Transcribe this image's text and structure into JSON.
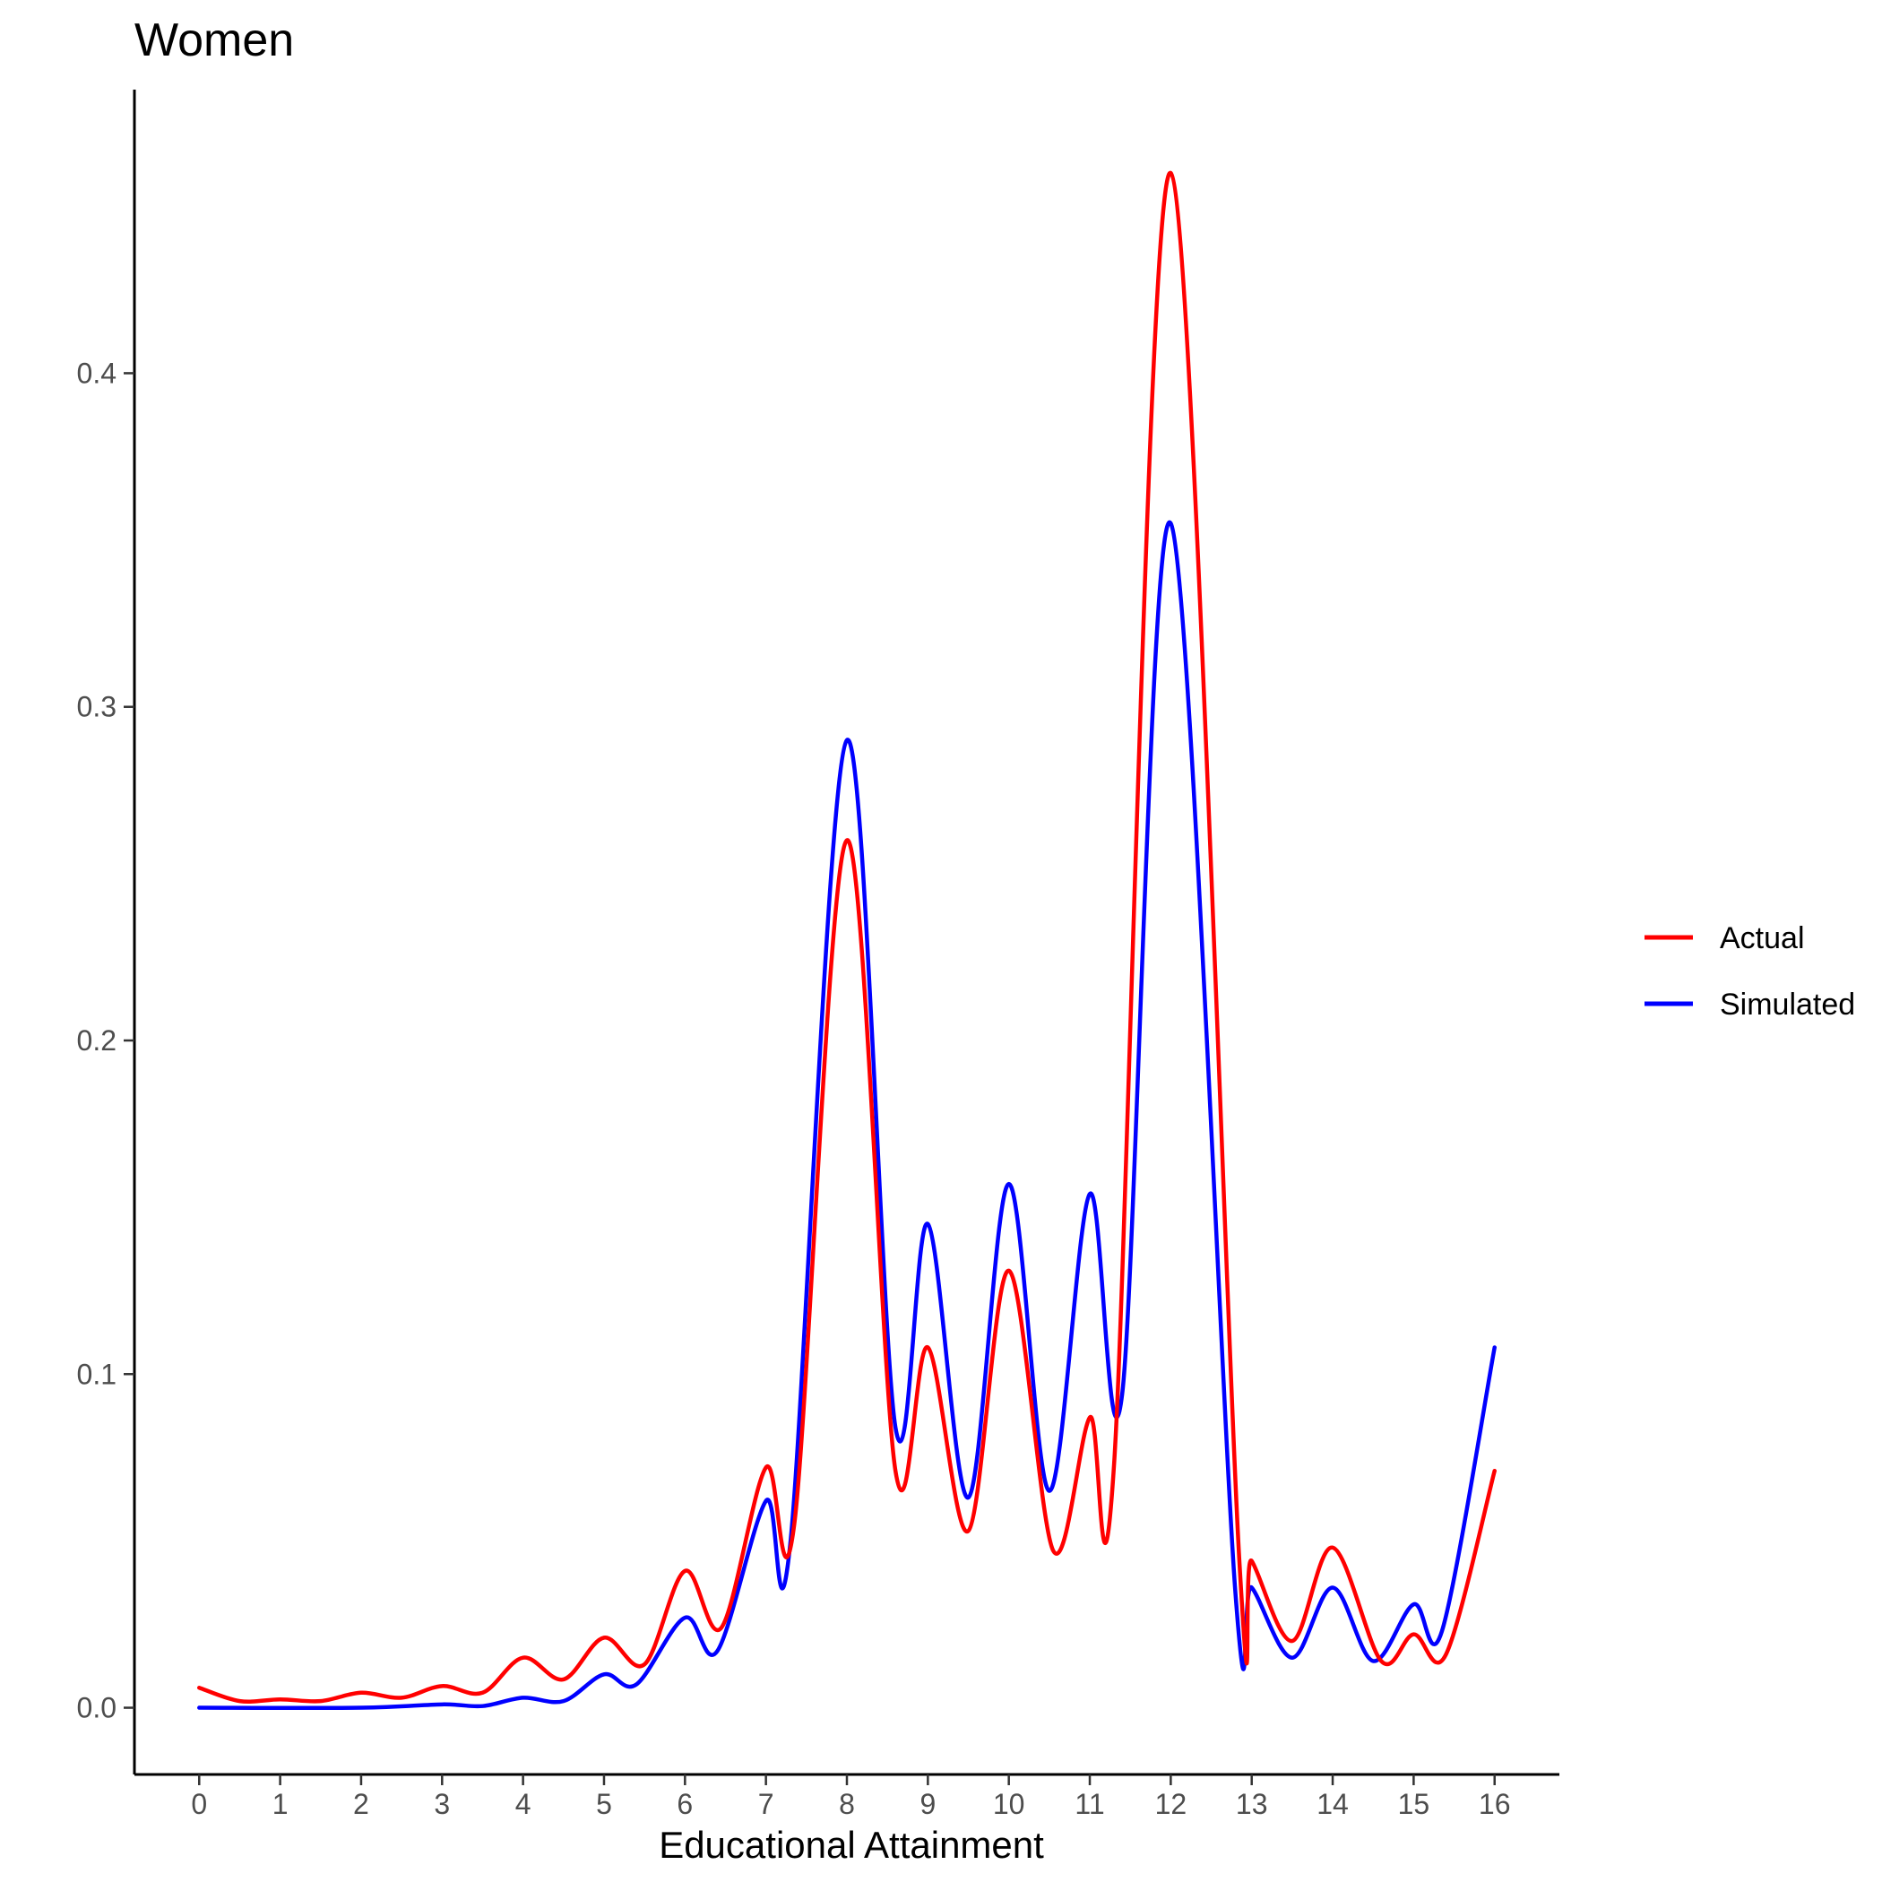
{
  "chart_data": {
    "type": "line",
    "title": "Women",
    "xlabel": "Educational Attainment",
    "ylabel": "",
    "xlim": [
      -0.8,
      16.8
    ],
    "ylim": [
      -0.02,
      0.485
    ],
    "x_ticks": [
      0,
      1,
      2,
      3,
      4,
      5,
      6,
      7,
      8,
      9,
      10,
      11,
      12,
      13,
      14,
      15,
      16
    ],
    "y_ticks": [
      0.0,
      0.1,
      0.2,
      0.3,
      0.4
    ],
    "y_tick_labels": [
      "0.0",
      "0.1",
      "0.2",
      "0.3",
      "0.4"
    ],
    "grid": false,
    "legend_position": "right",
    "series": [
      {
        "name": "Actual",
        "color": "#ff0000",
        "points": [
          [
            0,
            0.006
          ],
          [
            0.5,
            0.002
          ],
          [
            1,
            0.0025
          ],
          [
            1.5,
            0.002
          ],
          [
            2,
            0.0045
          ],
          [
            2.5,
            0.003
          ],
          [
            3,
            0.0065
          ],
          [
            3.5,
            0.0045
          ],
          [
            4,
            0.015
          ],
          [
            4.5,
            0.0085
          ],
          [
            5,
            0.021
          ],
          [
            5.5,
            0.013
          ],
          [
            6,
            0.041
          ],
          [
            6.45,
            0.024
          ],
          [
            7,
            0.072
          ],
          [
            7.35,
            0.055
          ],
          [
            8,
            0.26
          ],
          [
            8.6,
            0.071
          ],
          [
            9,
            0.108
          ],
          [
            9.5,
            0.053
          ],
          [
            10,
            0.131
          ],
          [
            10.55,
            0.047
          ],
          [
            11,
            0.087
          ],
          [
            11.3,
            0.073
          ],
          [
            12,
            0.46
          ],
          [
            12.85,
            0.043
          ],
          [
            13,
            0.044
          ],
          [
            13.5,
            0.02
          ],
          [
            14,
            0.048
          ],
          [
            14.6,
            0.014
          ],
          [
            15,
            0.022
          ],
          [
            15.4,
            0.016
          ],
          [
            16,
            0.071
          ]
        ]
      },
      {
        "name": "Simulated",
        "color": "#0000ff",
        "points": [
          [
            0,
            0.0
          ],
          [
            2,
            0.0
          ],
          [
            3,
            0.001
          ],
          [
            3.5,
            0.0005
          ],
          [
            4,
            0.003
          ],
          [
            4.5,
            0.002
          ],
          [
            5,
            0.01
          ],
          [
            5.4,
            0.007
          ],
          [
            6,
            0.027
          ],
          [
            6.4,
            0.017
          ],
          [
            7,
            0.062
          ],
          [
            7.3,
            0.049
          ],
          [
            8,
            0.29
          ],
          [
            8.6,
            0.084
          ],
          [
            9,
            0.145
          ],
          [
            9.5,
            0.063
          ],
          [
            10,
            0.157
          ],
          [
            10.5,
            0.065
          ],
          [
            11,
            0.154
          ],
          [
            11.4,
            0.094
          ],
          [
            12,
            0.355
          ],
          [
            12.8,
            0.034
          ],
          [
            13,
            0.036
          ],
          [
            13.5,
            0.015
          ],
          [
            14,
            0.036
          ],
          [
            14.5,
            0.014
          ],
          [
            15,
            0.031
          ],
          [
            15.35,
            0.023
          ],
          [
            16,
            0.108
          ]
        ]
      }
    ]
  }
}
